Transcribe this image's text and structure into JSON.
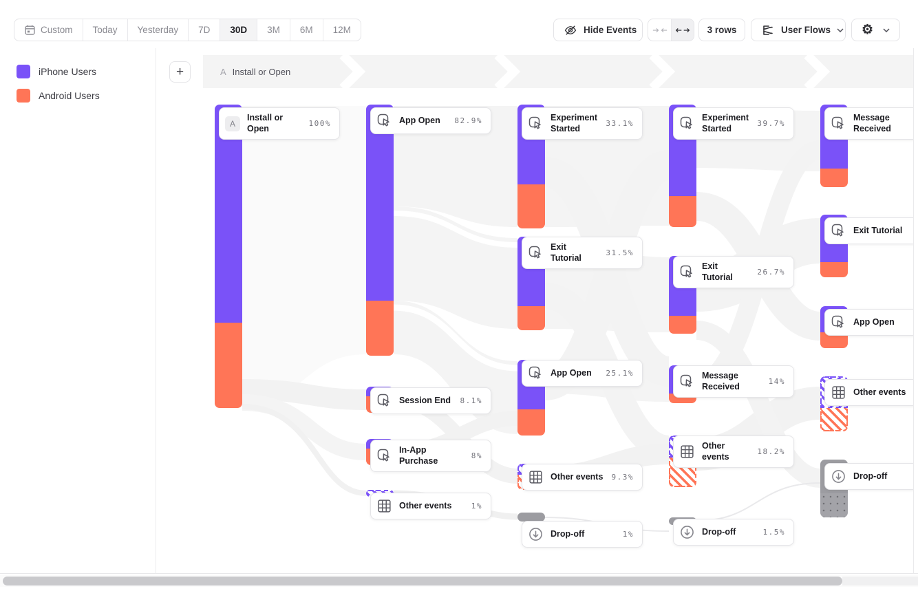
{
  "toolbar": {
    "date_ranges": [
      "Custom",
      "Today",
      "Yesterday",
      "7D",
      "30D",
      "3M",
      "6M",
      "12M"
    ],
    "selected_range": "30D",
    "hide_events_label": "Hide Events",
    "rows_label": "3 rows",
    "view_label": "User Flows"
  },
  "legend": {
    "items": [
      {
        "label": "iPhone Users",
        "color": "#7A52F8"
      },
      {
        "label": "Android Users",
        "color": "#FF7557"
      }
    ]
  },
  "path_header": {
    "prefix": "A",
    "label": "Install or Open"
  },
  "add_button_label": "+",
  "colors": {
    "iphone": "#7A52F8",
    "android": "#FF7557",
    "dropoff": "#9c9ca1"
  },
  "columns": [
    {
      "nodes": [
        {
          "name": "Install or Open",
          "pct": "100%",
          "type": "start",
          "badge": "A"
        }
      ]
    },
    {
      "nodes": [
        {
          "name": "App Open",
          "pct": "82.9%",
          "type": "event"
        },
        {
          "name": "Session End",
          "pct": "8.1%",
          "type": "event"
        },
        {
          "name": "In-App Purchase",
          "pct": "8%",
          "type": "event"
        },
        {
          "name": "Other events",
          "pct": "1%",
          "type": "other"
        }
      ]
    },
    {
      "nodes": [
        {
          "name": "Experiment Started",
          "pct": "33.1%",
          "type": "event"
        },
        {
          "name": "Exit Tutorial",
          "pct": "31.5%",
          "type": "event"
        },
        {
          "name": "App Open",
          "pct": "25.1%",
          "type": "event"
        },
        {
          "name": "Other events",
          "pct": "9.3%",
          "type": "other"
        },
        {
          "name": "Drop-off",
          "pct": "1%",
          "type": "dropoff"
        }
      ]
    },
    {
      "nodes": [
        {
          "name": "Experiment Started",
          "pct": "39.7%",
          "type": "event"
        },
        {
          "name": "Exit Tutorial",
          "pct": "26.7%",
          "type": "event"
        },
        {
          "name": "Message Received",
          "pct": "14%",
          "type": "event"
        },
        {
          "name": "Other events",
          "pct": "18.2%",
          "type": "other"
        },
        {
          "name": "Drop-off",
          "pct": "1.5%",
          "type": "dropoff"
        }
      ]
    },
    {
      "nodes": [
        {
          "name": "Message Received",
          "pct": "",
          "type": "event"
        },
        {
          "name": "Exit Tutorial",
          "pct": "",
          "type": "event"
        },
        {
          "name": "App Open",
          "pct": "",
          "type": "event"
        },
        {
          "name": "Other events",
          "pct": "",
          "type": "other"
        },
        {
          "name": "Drop-off",
          "pct": "",
          "type": "dropoff"
        }
      ]
    }
  ]
}
